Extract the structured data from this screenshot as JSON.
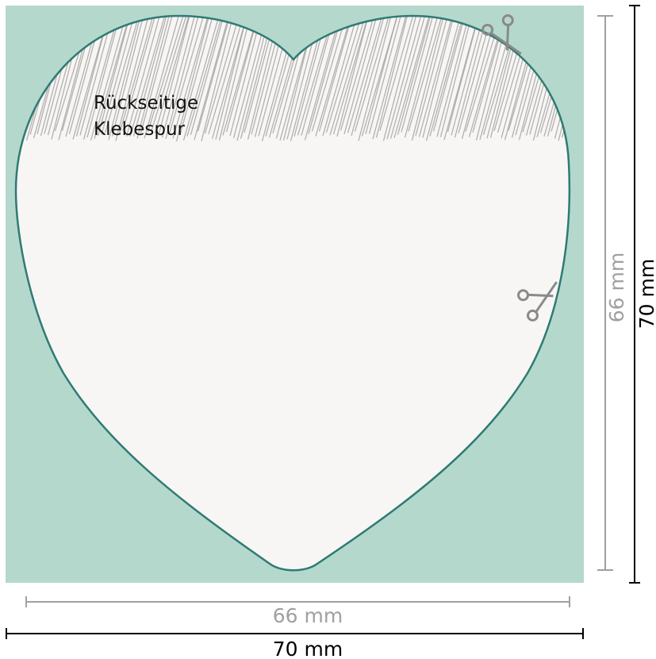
{
  "colors": {
    "background_square": "#b5d8cc",
    "heart_fill": "#f8f6f4",
    "heart_outline": "#2e7b74",
    "hatch": "#9a9a9a",
    "inner_dimension": "#a0a0a0",
    "outer_dimension": "#000000",
    "scissors": "#8a8a8a"
  },
  "glue_label": {
    "line1": "Rückseitige",
    "line2": "Klebespur"
  },
  "dimensions": {
    "inner_width": "66 mm",
    "inner_height": "66 mm",
    "outer_width": "70 mm",
    "outer_height": "70 mm"
  },
  "icons": [
    "scissors-icon",
    "scissors-icon"
  ]
}
